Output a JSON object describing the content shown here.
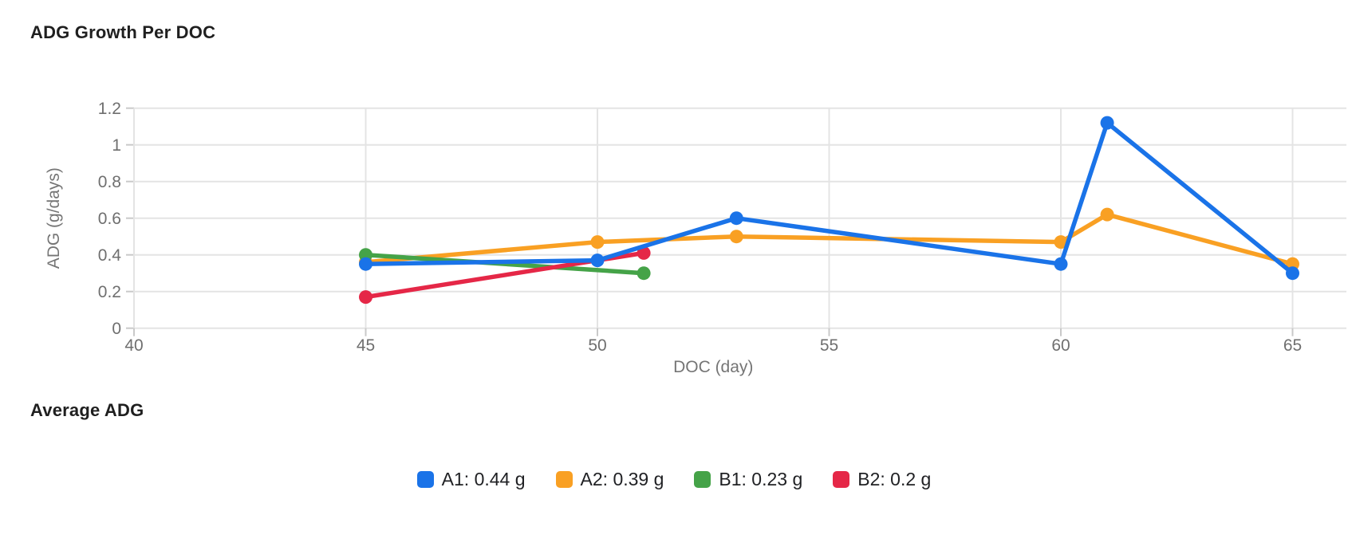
{
  "page": {
    "title": "ADG Growth Per DOC",
    "average_adg_heading": "Average ADG"
  },
  "chart_data": {
    "type": "line",
    "title": "ADG Growth Per DOC",
    "xlabel": "DOC (day)",
    "ylabel": "ADG (g/days)",
    "xlim": [
      40,
      65
    ],
    "ylim": [
      0,
      1.2
    ],
    "x_ticks": [
      40,
      45,
      50,
      55,
      60,
      65
    ],
    "x_tick_labels": [
      "40",
      "45",
      "50",
      "55",
      "60",
      "65"
    ],
    "y_ticks": [
      0,
      0.2,
      0.4,
      0.6,
      0.8,
      1,
      1.2
    ],
    "y_tick_labels": [
      "0",
      "0.2",
      "0.4",
      "0.6",
      "0.8",
      "1",
      "1.2"
    ],
    "grid": true,
    "legend_position": "bottom",
    "series": [
      {
        "name": "A1",
        "color": "#1a73e8",
        "average_label": "A1: 0.44 g",
        "points": [
          [
            45,
            0.35
          ],
          [
            50,
            0.37
          ],
          [
            53,
            0.6
          ],
          [
            60,
            0.35
          ],
          [
            61,
            1.12
          ],
          [
            65,
            0.3
          ]
        ]
      },
      {
        "name": "A2",
        "color": "#f9a023",
        "average_label": "A2: 0.39 g",
        "points": [
          [
            45,
            0.36
          ],
          [
            50,
            0.47
          ],
          [
            53,
            0.5
          ],
          [
            60,
            0.47
          ],
          [
            61,
            0.62
          ],
          [
            65,
            0.35
          ]
        ]
      },
      {
        "name": "B1",
        "color": "#45a348",
        "average_label": "B1: 0.23 g",
        "points": [
          [
            45,
            0.4
          ],
          [
            51,
            0.3
          ]
        ]
      },
      {
        "name": "B2",
        "color": "#e52747",
        "average_label": "B2: 0.2 g",
        "points": [
          [
            45,
            0.17
          ],
          [
            51,
            0.41
          ]
        ]
      }
    ],
    "draw_order": [
      "A2",
      "B1",
      "B2",
      "A1"
    ],
    "style": {
      "grid_color": "#e4e4e4",
      "tick_color": "#c9c9c9",
      "tick_label_color": "#6f6f6f",
      "axis_label_color": "#757575",
      "title_color": "#1f1f1f",
      "legend_text_color": "#202124",
      "background": "#ffffff"
    }
  }
}
